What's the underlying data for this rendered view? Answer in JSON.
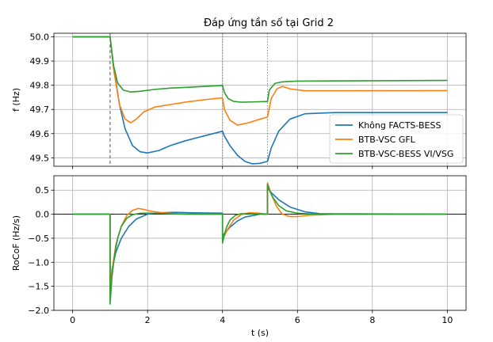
{
  "chart_data": [
    {
      "type": "line",
      "title": "Đáp ứng tần số tại Grid 2",
      "xlabel": "",
      "ylabel": "f (Hz)",
      "xlim": [
        -0.5,
        10.5
      ],
      "ylim": [
        49.465,
        50.015
      ],
      "xticks": [
        0,
        2,
        4,
        6,
        8,
        10
      ],
      "yticks": [
        49.5,
        49.6,
        49.7,
        49.8,
        49.9,
        50.0
      ],
      "ytick_labels": [
        "49.5",
        "49.6",
        "49.7",
        "49.8",
        "49.9",
        "50.0"
      ],
      "grid": true,
      "legend": "lower-right",
      "event_lines": [
        1.0,
        4.0,
        5.2
      ],
      "series": [
        {
          "name": "Không FACTS-BESS",
          "color": "#1f77b4",
          "x": [
            0,
            1.0,
            1.1,
            1.25,
            1.4,
            1.6,
            1.8,
            2.0,
            2.3,
            2.6,
            3.0,
            3.5,
            4.0,
            4.05,
            4.2,
            4.4,
            4.6,
            4.8,
            5.0,
            5.2,
            5.3,
            5.5,
            5.8,
            6.2,
            7.0,
            8.0,
            10.0
          ],
          "y": [
            50.0,
            50.0,
            49.87,
            49.72,
            49.62,
            49.55,
            49.525,
            49.52,
            49.53,
            49.55,
            49.57,
            49.59,
            49.61,
            49.59,
            49.55,
            49.51,
            49.485,
            49.475,
            49.477,
            49.485,
            49.54,
            49.61,
            49.66,
            49.682,
            49.687,
            49.687,
            49.687
          ]
        },
        {
          "name": "BTB-VSC GFL",
          "color": "#ff7f0e",
          "x": [
            0,
            1.0,
            1.1,
            1.25,
            1.4,
            1.55,
            1.7,
            1.9,
            2.2,
            2.6,
            3.0,
            3.5,
            4.0,
            4.05,
            4.2,
            4.4,
            4.7,
            5.0,
            5.2,
            5.3,
            5.45,
            5.6,
            5.8,
            6.2,
            7.0,
            10.0
          ],
          "y": [
            50.0,
            50.0,
            49.86,
            49.72,
            49.66,
            49.645,
            49.66,
            49.69,
            49.71,
            49.72,
            49.73,
            49.74,
            49.748,
            49.7,
            49.655,
            49.635,
            49.645,
            49.66,
            49.668,
            49.745,
            49.785,
            49.795,
            49.785,
            49.777,
            49.777,
            49.778
          ]
        },
        {
          "name": "BTB-VSC-BESS VI/VSG",
          "color": "#2ca02c",
          "x": [
            0,
            1.0,
            1.08,
            1.2,
            1.35,
            1.55,
            1.8,
            2.2,
            2.6,
            3.0,
            3.5,
            4.0,
            4.05,
            4.15,
            4.3,
            4.5,
            4.8,
            5.2,
            5.25,
            5.4,
            5.6,
            6.0,
            7.0,
            10.0
          ],
          "y": [
            50.0,
            50.0,
            49.89,
            49.81,
            49.78,
            49.772,
            49.775,
            49.783,
            49.788,
            49.791,
            49.795,
            49.799,
            49.77,
            49.745,
            49.733,
            49.73,
            49.731,
            49.733,
            49.78,
            49.808,
            49.814,
            49.817,
            49.818,
            49.82
          ]
        }
      ]
    },
    {
      "type": "line",
      "title": "",
      "xlabel": "t (s)",
      "ylabel": "RoCoF (Hz/s)",
      "xlim": [
        -0.5,
        10.5
      ],
      "ylim": [
        -2.0,
        0.8
      ],
      "xticks": [
        0,
        2,
        4,
        6,
        8,
        10
      ],
      "xtick_labels": [
        "0",
        "2",
        "4",
        "6",
        "8",
        "10"
      ],
      "yticks": [
        -2.0,
        -1.5,
        -1.0,
        -0.5,
        0.0,
        0.5
      ],
      "ytick_labels": [
        "−2.0",
        "−1.5",
        "−1.0",
        "−0.5",
        "0.0",
        "0.5"
      ],
      "grid": true,
      "zero_line": true,
      "series": [
        {
          "name": "Không FACTS-BESS",
          "color": "#1f77b4",
          "x": [
            0,
            1.0,
            1.0,
            1.05,
            1.15,
            1.3,
            1.5,
            1.7,
            2.0,
            2.3,
            2.7,
            3.2,
            4.0,
            4.0,
            4.05,
            4.2,
            4.4,
            4.6,
            5.0,
            5.2,
            5.2,
            5.3,
            5.5,
            5.8,
            6.2,
            6.6,
            10.0
          ],
          "y": [
            0.0,
            0.0,
            -1.6,
            -1.15,
            -0.8,
            -0.5,
            -0.25,
            -0.1,
            0.0,
            0.03,
            0.04,
            0.03,
            0.02,
            -0.45,
            -0.4,
            -0.27,
            -0.14,
            -0.06,
            0.0,
            0.0,
            0.55,
            0.45,
            0.3,
            0.15,
            0.05,
            0.01,
            0.0
          ]
        },
        {
          "name": "BTB-VSC GFL",
          "color": "#ff7f0e",
          "x": [
            0,
            1.0,
            1.0,
            1.05,
            1.15,
            1.3,
            1.45,
            1.6,
            1.75,
            1.9,
            2.1,
            2.4,
            2.8,
            3.5,
            4.0,
            4.0,
            4.05,
            4.15,
            4.3,
            4.5,
            4.7,
            5.0,
            5.2,
            5.2,
            5.3,
            5.45,
            5.6,
            5.8,
            6.0,
            6.3,
            7.0,
            10.0
          ],
          "y": [
            0.0,
            0.0,
            -1.75,
            -1.2,
            -0.65,
            -0.25,
            -0.02,
            0.08,
            0.12,
            0.1,
            0.06,
            0.03,
            0.01,
            0.0,
            0.0,
            -0.55,
            -0.45,
            -0.3,
            -0.12,
            -0.01,
            0.03,
            0.02,
            0.0,
            0.65,
            0.42,
            0.15,
            0.0,
            -0.05,
            -0.05,
            -0.02,
            0.0,
            0.0
          ]
        },
        {
          "name": "BTB-VSC-BESS VI/VSG",
          "color": "#2ca02c",
          "x": [
            0,
            1.0,
            1.0,
            1.05,
            1.12,
            1.2,
            1.3,
            1.45,
            1.6,
            1.8,
            2.1,
            2.5,
            3.0,
            4.0,
            4.0,
            4.05,
            4.12,
            4.2,
            4.35,
            4.5,
            4.7,
            5.2,
            5.2,
            5.25,
            5.35,
            5.5,
            5.7,
            6.0,
            6.5,
            10.0
          ],
          "y": [
            0.0,
            0.0,
            -1.87,
            -1.3,
            -0.85,
            -0.5,
            -0.25,
            -0.08,
            -0.01,
            0.02,
            0.02,
            0.01,
            0.0,
            0.0,
            -0.6,
            -0.42,
            -0.25,
            -0.12,
            -0.02,
            0.01,
            0.01,
            0.0,
            0.62,
            0.5,
            0.34,
            0.18,
            0.07,
            0.02,
            0.0,
            0.0
          ]
        }
      ]
    }
  ]
}
